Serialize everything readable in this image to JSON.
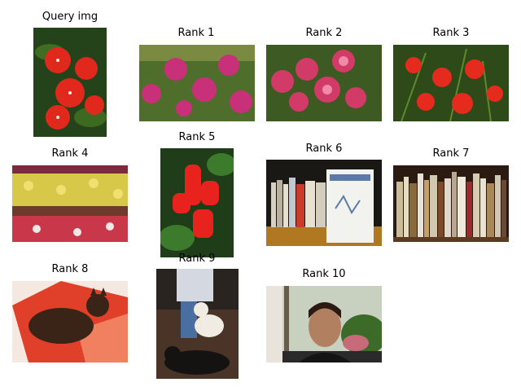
{
  "query": {
    "title": "Query img"
  },
  "results": [
    {
      "title": "Rank 1"
    },
    {
      "title": "Rank 2"
    },
    {
      "title": "Rank 3"
    },
    {
      "title": "Rank 4"
    },
    {
      "title": "Rank 5"
    },
    {
      "title": "Rank 6"
    },
    {
      "title": "Rank 7"
    },
    {
      "title": "Rank 8"
    },
    {
      "title": "Rank 9"
    },
    {
      "title": "Rank 10"
    }
  ]
}
